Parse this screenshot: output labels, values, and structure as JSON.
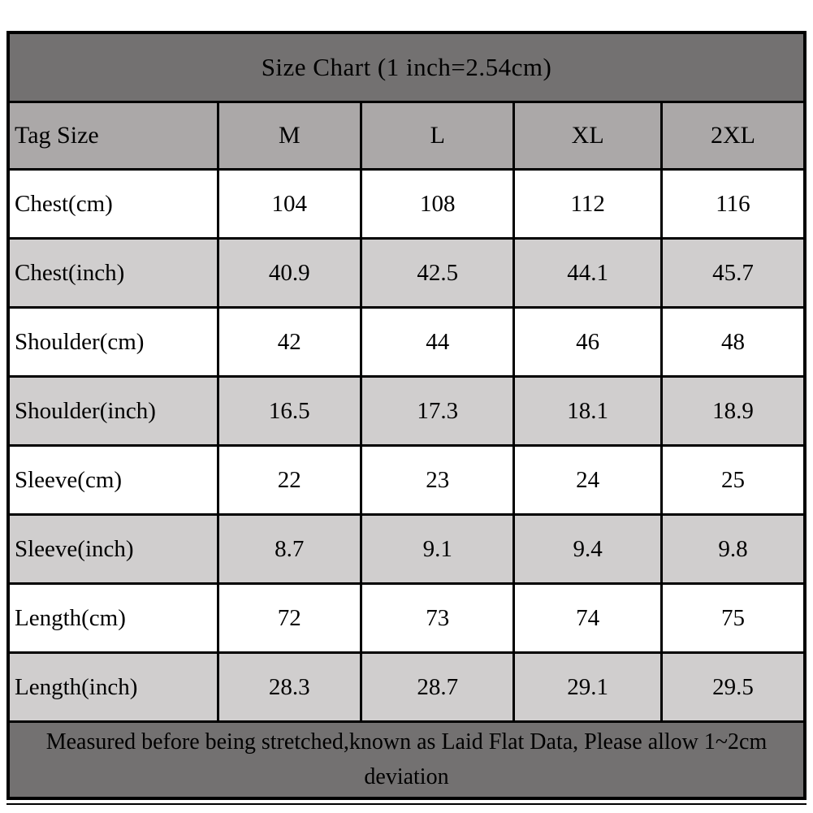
{
  "chart_data": {
    "type": "table",
    "title": "Size Chart (1 inch=2.54cm)",
    "columns": [
      "Tag Size",
      "M",
      "L",
      "XL",
      "2XL"
    ],
    "rows": [
      {
        "label": "Chest(cm)",
        "values": [
          "104",
          "108",
          "112",
          "116"
        ]
      },
      {
        "label": "Chest(inch)",
        "values": [
          "40.9",
          "42.5",
          "44.1",
          "45.7"
        ]
      },
      {
        "label": "Shoulder(cm)",
        "values": [
          "42",
          "44",
          "46",
          "48"
        ]
      },
      {
        "label": "Shoulder(inch)",
        "values": [
          "16.5",
          "17.3",
          "18.1",
          "18.9"
        ]
      },
      {
        "label": "Sleeve(cm)",
        "values": [
          "22",
          "23",
          "24",
          "25"
        ]
      },
      {
        "label": "Sleeve(inch)",
        "values": [
          "8.7",
          "9.1",
          "9.4",
          "9.8"
        ]
      },
      {
        "label": "Length(cm)",
        "values": [
          "72",
          "73",
          "74",
          "75"
        ]
      },
      {
        "label": "Length(inch)",
        "values": [
          "28.3",
          "28.7",
          "29.1",
          "29.5"
        ]
      }
    ],
    "footnote": "Measured before being stretched,known as Laid Flat Data, Please allow 1~2cm deviation"
  },
  "colors": {
    "title_bar_bg": "#737171",
    "header_row_bg": "#aba8a8",
    "alt_row_bg": "#d0cece",
    "white_row_bg": "#ffffff",
    "border": "#000000",
    "text": "#000000"
  }
}
